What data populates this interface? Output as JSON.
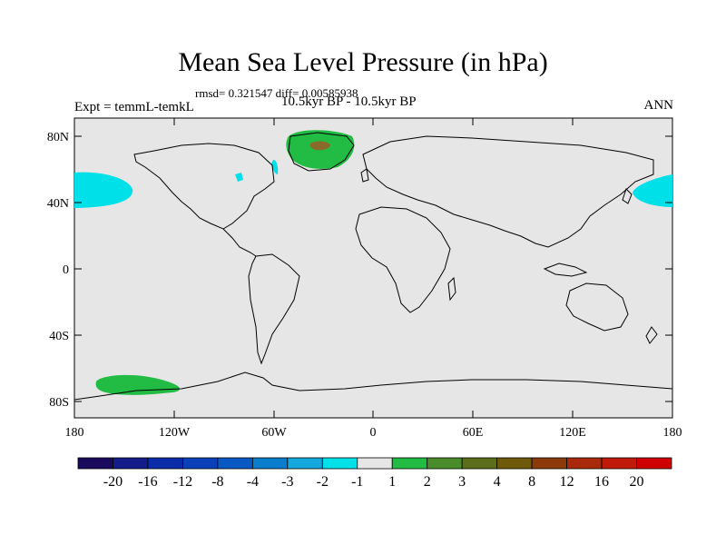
{
  "header": {
    "title": "Mean Sea Level Pressure (in hPa)",
    "stats": "rmsd= 0.321547 diff= 0.00585938",
    "experiment": "Expt = temmL-temkL",
    "period": "10.5kyr BP - 10.5kyr BP",
    "season": "ANN"
  },
  "axes": {
    "lat_labels": [
      "80N",
      "40N",
      "0",
      "40S",
      "80S"
    ],
    "lon_labels": [
      "180",
      "120W",
      "60W",
      "0",
      "60E",
      "120E",
      "180"
    ]
  },
  "colors": {
    "background": "#e6e6e6",
    "land_outline": "#000000",
    "cyan_contour": "#00e0e8",
    "green_contour": "#22bb44",
    "brown_contour": "#8a6a2a"
  },
  "colorbar": {
    "labels": [
      "-20",
      "-16",
      "-12",
      "-8",
      "-4",
      "-3",
      "-2",
      "-1",
      "1",
      "2",
      "3",
      "4",
      "8",
      "12",
      "16",
      "20"
    ],
    "colors": [
      "#1a0a5e",
      "#141c8a",
      "#0a2ca8",
      "#0a40b8",
      "#0a58c2",
      "#0a7ecc",
      "#14a8dc",
      "#00e0e8",
      "#e6e6e6",
      "#22bb44",
      "#4a8c2a",
      "#5c6e1a",
      "#6e5a0a",
      "#8c3a0a",
      "#a82a0a",
      "#c01a0a",
      "#d00000"
    ]
  }
}
